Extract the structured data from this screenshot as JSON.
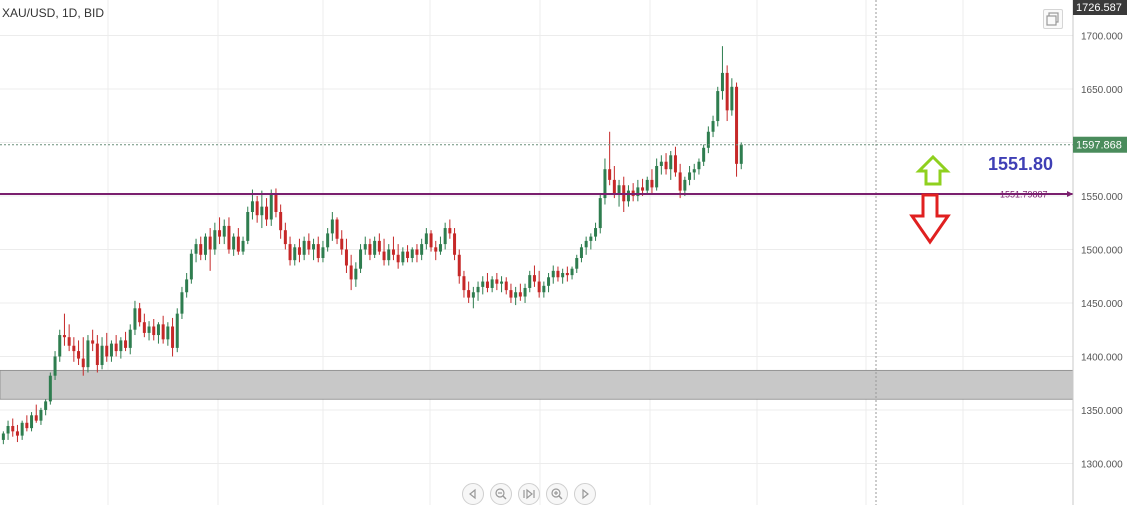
{
  "header": {
    "symbol": "XAU/USD, 1D, BID"
  },
  "annotation": {
    "level_label": "1551.80"
  },
  "chart_data": {
    "type": "candlestick",
    "yaxis": {
      "range": [
        1250,
        1726.587
      ],
      "ticks": [
        "1300.000",
        "1350.000",
        "1400.000",
        "1450.000",
        "1500.000",
        "1550.000",
        "1600.000",
        "1650.000",
        "1700.000"
      ]
    },
    "labels": {
      "top": "1726.587",
      "current": "1597.868",
      "level": "1551.79887"
    },
    "current_price": 1597.868,
    "horizontal_line": 1551.79887,
    "support_zone": [
      1360,
      1387
    ],
    "arrows": [
      {
        "direction": "up",
        "color": "#8fd01e"
      },
      {
        "direction": "down",
        "color": "#e02020"
      }
    ],
    "colors": {
      "up": "#2e7d4f",
      "down": "#c62828",
      "line": "#7a1f6e",
      "zone": "#c8c8c8",
      "current": "#4a8c5c"
    },
    "candles": [
      {
        "o": 1322,
        "h": 1330,
        "l": 1318,
        "c": 1328
      },
      {
        "o": 1328,
        "h": 1340,
        "l": 1322,
        "c": 1335
      },
      {
        "o": 1335,
        "h": 1342,
        "l": 1325,
        "c": 1330
      },
      {
        "o": 1330,
        "h": 1336,
        "l": 1320,
        "c": 1326
      },
      {
        "o": 1326,
        "h": 1340,
        "l": 1322,
        "c": 1338
      },
      {
        "o": 1338,
        "h": 1345,
        "l": 1330,
        "c": 1333
      },
      {
        "o": 1333,
        "h": 1348,
        "l": 1330,
        "c": 1345
      },
      {
        "o": 1345,
        "h": 1355,
        "l": 1338,
        "c": 1340
      },
      {
        "o": 1340,
        "h": 1352,
        "l": 1336,
        "c": 1350
      },
      {
        "o": 1350,
        "h": 1360,
        "l": 1345,
        "c": 1358
      },
      {
        "o": 1358,
        "h": 1385,
        "l": 1355,
        "c": 1382
      },
      {
        "o": 1382,
        "h": 1405,
        "l": 1378,
        "c": 1400
      },
      {
        "o": 1400,
        "h": 1425,
        "l": 1395,
        "c": 1420
      },
      {
        "o": 1420,
        "h": 1440,
        "l": 1410,
        "c": 1418
      },
      {
        "o": 1418,
        "h": 1430,
        "l": 1405,
        "c": 1410
      },
      {
        "o": 1410,
        "h": 1418,
        "l": 1395,
        "c": 1405
      },
      {
        "o": 1405,
        "h": 1415,
        "l": 1392,
        "c": 1398
      },
      {
        "o": 1398,
        "h": 1418,
        "l": 1382,
        "c": 1390
      },
      {
        "o": 1390,
        "h": 1420,
        "l": 1385,
        "c": 1415
      },
      {
        "o": 1415,
        "h": 1425,
        "l": 1405,
        "c": 1412
      },
      {
        "o": 1412,
        "h": 1420,
        "l": 1385,
        "c": 1392
      },
      {
        "o": 1392,
        "h": 1418,
        "l": 1388,
        "c": 1410
      },
      {
        "o": 1410,
        "h": 1422,
        "l": 1395,
        "c": 1400
      },
      {
        "o": 1400,
        "h": 1415,
        "l": 1395,
        "c": 1412
      },
      {
        "o": 1412,
        "h": 1420,
        "l": 1400,
        "c": 1405
      },
      {
        "o": 1405,
        "h": 1418,
        "l": 1398,
        "c": 1415
      },
      {
        "o": 1415,
        "h": 1423,
        "l": 1405,
        "c": 1408
      },
      {
        "o": 1408,
        "h": 1430,
        "l": 1402,
        "c": 1425
      },
      {
        "o": 1425,
        "h": 1452,
        "l": 1420,
        "c": 1445
      },
      {
        "o": 1445,
        "h": 1450,
        "l": 1428,
        "c": 1432
      },
      {
        "o": 1432,
        "h": 1440,
        "l": 1418,
        "c": 1422
      },
      {
        "o": 1422,
        "h": 1433,
        "l": 1415,
        "c": 1428
      },
      {
        "o": 1428,
        "h": 1435,
        "l": 1415,
        "c": 1420
      },
      {
        "o": 1420,
        "h": 1432,
        "l": 1412,
        "c": 1430
      },
      {
        "o": 1430,
        "h": 1438,
        "l": 1412,
        "c": 1416
      },
      {
        "o": 1416,
        "h": 1432,
        "l": 1410,
        "c": 1428
      },
      {
        "o": 1428,
        "h": 1436,
        "l": 1400,
        "c": 1408
      },
      {
        "o": 1408,
        "h": 1445,
        "l": 1404,
        "c": 1440
      },
      {
        "o": 1440,
        "h": 1465,
        "l": 1435,
        "c": 1460
      },
      {
        "o": 1460,
        "h": 1478,
        "l": 1455,
        "c": 1472
      },
      {
        "o": 1472,
        "h": 1500,
        "l": 1468,
        "c": 1496
      },
      {
        "o": 1496,
        "h": 1510,
        "l": 1488,
        "c": 1505
      },
      {
        "o": 1505,
        "h": 1512,
        "l": 1490,
        "c": 1495
      },
      {
        "o": 1495,
        "h": 1515,
        "l": 1490,
        "c": 1512
      },
      {
        "o": 1512,
        "h": 1520,
        "l": 1480,
        "c": 1500
      },
      {
        "o": 1500,
        "h": 1525,
        "l": 1495,
        "c": 1518
      },
      {
        "o": 1518,
        "h": 1530,
        "l": 1505,
        "c": 1512
      },
      {
        "o": 1512,
        "h": 1528,
        "l": 1505,
        "c": 1522
      },
      {
        "o": 1522,
        "h": 1530,
        "l": 1496,
        "c": 1500
      },
      {
        "o": 1500,
        "h": 1515,
        "l": 1494,
        "c": 1512
      },
      {
        "o": 1512,
        "h": 1520,
        "l": 1495,
        "c": 1498
      },
      {
        "o": 1498,
        "h": 1512,
        "l": 1495,
        "c": 1508
      },
      {
        "o": 1508,
        "h": 1540,
        "l": 1505,
        "c": 1535
      },
      {
        "o": 1535,
        "h": 1556,
        "l": 1528,
        "c": 1545
      },
      {
        "o": 1545,
        "h": 1550,
        "l": 1525,
        "c": 1532
      },
      {
        "o": 1532,
        "h": 1555,
        "l": 1520,
        "c": 1540
      },
      {
        "o": 1540,
        "h": 1548,
        "l": 1522,
        "c": 1528
      },
      {
        "o": 1528,
        "h": 1556,
        "l": 1522,
        "c": 1552
      },
      {
        "o": 1552,
        "h": 1557,
        "l": 1530,
        "c": 1535
      },
      {
        "o": 1535,
        "h": 1542,
        "l": 1510,
        "c": 1518
      },
      {
        "o": 1518,
        "h": 1525,
        "l": 1500,
        "c": 1505
      },
      {
        "o": 1505,
        "h": 1512,
        "l": 1485,
        "c": 1490
      },
      {
        "o": 1490,
        "h": 1505,
        "l": 1485,
        "c": 1502
      },
      {
        "o": 1502,
        "h": 1510,
        "l": 1488,
        "c": 1495
      },
      {
        "o": 1495,
        "h": 1512,
        "l": 1490,
        "c": 1508
      },
      {
        "o": 1508,
        "h": 1515,
        "l": 1495,
        "c": 1500
      },
      {
        "o": 1500,
        "h": 1510,
        "l": 1490,
        "c": 1505
      },
      {
        "o": 1505,
        "h": 1512,
        "l": 1488,
        "c": 1492
      },
      {
        "o": 1492,
        "h": 1508,
        "l": 1488,
        "c": 1502
      },
      {
        "o": 1502,
        "h": 1520,
        "l": 1498,
        "c": 1515
      },
      {
        "o": 1515,
        "h": 1535,
        "l": 1508,
        "c": 1528
      },
      {
        "o": 1528,
        "h": 1530,
        "l": 1505,
        "c": 1510
      },
      {
        "o": 1510,
        "h": 1518,
        "l": 1495,
        "c": 1500
      },
      {
        "o": 1500,
        "h": 1510,
        "l": 1478,
        "c": 1485
      },
      {
        "o": 1485,
        "h": 1495,
        "l": 1462,
        "c": 1472
      },
      {
        "o": 1472,
        "h": 1488,
        "l": 1465,
        "c": 1482
      },
      {
        "o": 1482,
        "h": 1505,
        "l": 1478,
        "c": 1500
      },
      {
        "o": 1500,
        "h": 1512,
        "l": 1495,
        "c": 1505
      },
      {
        "o": 1505,
        "h": 1510,
        "l": 1490,
        "c": 1495
      },
      {
        "o": 1495,
        "h": 1512,
        "l": 1492,
        "c": 1508
      },
      {
        "o": 1508,
        "h": 1515,
        "l": 1495,
        "c": 1498
      },
      {
        "o": 1498,
        "h": 1510,
        "l": 1485,
        "c": 1490
      },
      {
        "o": 1490,
        "h": 1505,
        "l": 1485,
        "c": 1500
      },
      {
        "o": 1500,
        "h": 1512,
        "l": 1490,
        "c": 1495
      },
      {
        "o": 1495,
        "h": 1505,
        "l": 1482,
        "c": 1488
      },
      {
        "o": 1488,
        "h": 1502,
        "l": 1485,
        "c": 1498
      },
      {
        "o": 1498,
        "h": 1504,
        "l": 1488,
        "c": 1492
      },
      {
        "o": 1492,
        "h": 1502,
        "l": 1488,
        "c": 1500
      },
      {
        "o": 1500,
        "h": 1505,
        "l": 1488,
        "c": 1495
      },
      {
        "o": 1495,
        "h": 1510,
        "l": 1490,
        "c": 1505
      },
      {
        "o": 1505,
        "h": 1520,
        "l": 1500,
        "c": 1515
      },
      {
        "o": 1515,
        "h": 1518,
        "l": 1498,
        "c": 1502
      },
      {
        "o": 1502,
        "h": 1508,
        "l": 1490,
        "c": 1498
      },
      {
        "o": 1498,
        "h": 1512,
        "l": 1495,
        "c": 1505
      },
      {
        "o": 1505,
        "h": 1525,
        "l": 1500,
        "c": 1520
      },
      {
        "o": 1520,
        "h": 1528,
        "l": 1510,
        "c": 1515
      },
      {
        "o": 1515,
        "h": 1520,
        "l": 1490,
        "c": 1495
      },
      {
        "o": 1495,
        "h": 1500,
        "l": 1468,
        "c": 1475
      },
      {
        "o": 1475,
        "h": 1480,
        "l": 1455,
        "c": 1462
      },
      {
        "o": 1462,
        "h": 1470,
        "l": 1450,
        "c": 1455
      },
      {
        "o": 1455,
        "h": 1465,
        "l": 1445,
        "c": 1460
      },
      {
        "o": 1460,
        "h": 1470,
        "l": 1452,
        "c": 1465
      },
      {
        "o": 1465,
        "h": 1475,
        "l": 1458,
        "c": 1470
      },
      {
        "o": 1470,
        "h": 1478,
        "l": 1460,
        "c": 1464
      },
      {
        "o": 1464,
        "h": 1475,
        "l": 1460,
        "c": 1472
      },
      {
        "o": 1472,
        "h": 1478,
        "l": 1462,
        "c": 1468
      },
      {
        "o": 1468,
        "h": 1475,
        "l": 1460,
        "c": 1470
      },
      {
        "o": 1470,
        "h": 1474,
        "l": 1458,
        "c": 1462
      },
      {
        "o": 1462,
        "h": 1468,
        "l": 1450,
        "c": 1455
      },
      {
        "o": 1455,
        "h": 1465,
        "l": 1448,
        "c": 1460
      },
      {
        "o": 1460,
        "h": 1468,
        "l": 1452,
        "c": 1456
      },
      {
        "o": 1456,
        "h": 1468,
        "l": 1450,
        "c": 1464
      },
      {
        "o": 1464,
        "h": 1480,
        "l": 1460,
        "c": 1476
      },
      {
        "o": 1476,
        "h": 1485,
        "l": 1465,
        "c": 1470
      },
      {
        "o": 1470,
        "h": 1480,
        "l": 1455,
        "c": 1460
      },
      {
        "o": 1460,
        "h": 1470,
        "l": 1455,
        "c": 1466
      },
      {
        "o": 1466,
        "h": 1478,
        "l": 1460,
        "c": 1474
      },
      {
        "o": 1474,
        "h": 1485,
        "l": 1468,
        "c": 1480
      },
      {
        "o": 1480,
        "h": 1484,
        "l": 1470,
        "c": 1474
      },
      {
        "o": 1474,
        "h": 1482,
        "l": 1468,
        "c": 1478
      },
      {
        "o": 1478,
        "h": 1484,
        "l": 1470,
        "c": 1476
      },
      {
        "o": 1476,
        "h": 1484,
        "l": 1472,
        "c": 1482
      },
      {
        "o": 1482,
        "h": 1495,
        "l": 1478,
        "c": 1492
      },
      {
        "o": 1492,
        "h": 1505,
        "l": 1488,
        "c": 1502
      },
      {
        "o": 1502,
        "h": 1512,
        "l": 1495,
        "c": 1508
      },
      {
        "o": 1508,
        "h": 1515,
        "l": 1500,
        "c": 1512
      },
      {
        "o": 1512,
        "h": 1525,
        "l": 1508,
        "c": 1520
      },
      {
        "o": 1520,
        "h": 1552,
        "l": 1515,
        "c": 1548
      },
      {
        "o": 1548,
        "h": 1585,
        "l": 1542,
        "c": 1575
      },
      {
        "o": 1575,
        "h": 1610,
        "l": 1560,
        "c": 1565
      },
      {
        "o": 1565,
        "h": 1578,
        "l": 1548,
        "c": 1552
      },
      {
        "o": 1552,
        "h": 1565,
        "l": 1540,
        "c": 1560
      },
      {
        "o": 1560,
        "h": 1568,
        "l": 1535,
        "c": 1545
      },
      {
        "o": 1545,
        "h": 1560,
        "l": 1540,
        "c": 1555
      },
      {
        "o": 1555,
        "h": 1562,
        "l": 1545,
        "c": 1550
      },
      {
        "o": 1550,
        "h": 1565,
        "l": 1545,
        "c": 1558
      },
      {
        "o": 1558,
        "h": 1566,
        "l": 1550,
        "c": 1555
      },
      {
        "o": 1555,
        "h": 1568,
        "l": 1552,
        "c": 1565
      },
      {
        "o": 1565,
        "h": 1575,
        "l": 1552,
        "c": 1558
      },
      {
        "o": 1558,
        "h": 1585,
        "l": 1555,
        "c": 1578
      },
      {
        "o": 1578,
        "h": 1588,
        "l": 1570,
        "c": 1582
      },
      {
        "o": 1582,
        "h": 1590,
        "l": 1570,
        "c": 1575
      },
      {
        "o": 1575,
        "h": 1592,
        "l": 1565,
        "c": 1588
      },
      {
        "o": 1588,
        "h": 1596,
        "l": 1568,
        "c": 1572
      },
      {
        "o": 1572,
        "h": 1580,
        "l": 1548,
        "c": 1555
      },
      {
        "o": 1555,
        "h": 1568,
        "l": 1550,
        "c": 1565
      },
      {
        "o": 1565,
        "h": 1578,
        "l": 1560,
        "c": 1572
      },
      {
        "o": 1572,
        "h": 1580,
        "l": 1565,
        "c": 1575
      },
      {
        "o": 1575,
        "h": 1585,
        "l": 1570,
        "c": 1582
      },
      {
        "o": 1582,
        "h": 1598,
        "l": 1578,
        "c": 1595
      },
      {
        "o": 1595,
        "h": 1615,
        "l": 1590,
        "c": 1610
      },
      {
        "o": 1610,
        "h": 1625,
        "l": 1605,
        "c": 1620
      },
      {
        "o": 1620,
        "h": 1652,
        "l": 1615,
        "c": 1648
      },
      {
        "o": 1648,
        "h": 1690,
        "l": 1640,
        "c": 1665
      },
      {
        "o": 1665,
        "h": 1672,
        "l": 1620,
        "c": 1630
      },
      {
        "o": 1630,
        "h": 1660,
        "l": 1625,
        "c": 1652
      },
      {
        "o": 1652,
        "h": 1656,
        "l": 1568,
        "c": 1580
      },
      {
        "o": 1580,
        "h": 1600,
        "l": 1575,
        "c": 1598
      }
    ]
  }
}
